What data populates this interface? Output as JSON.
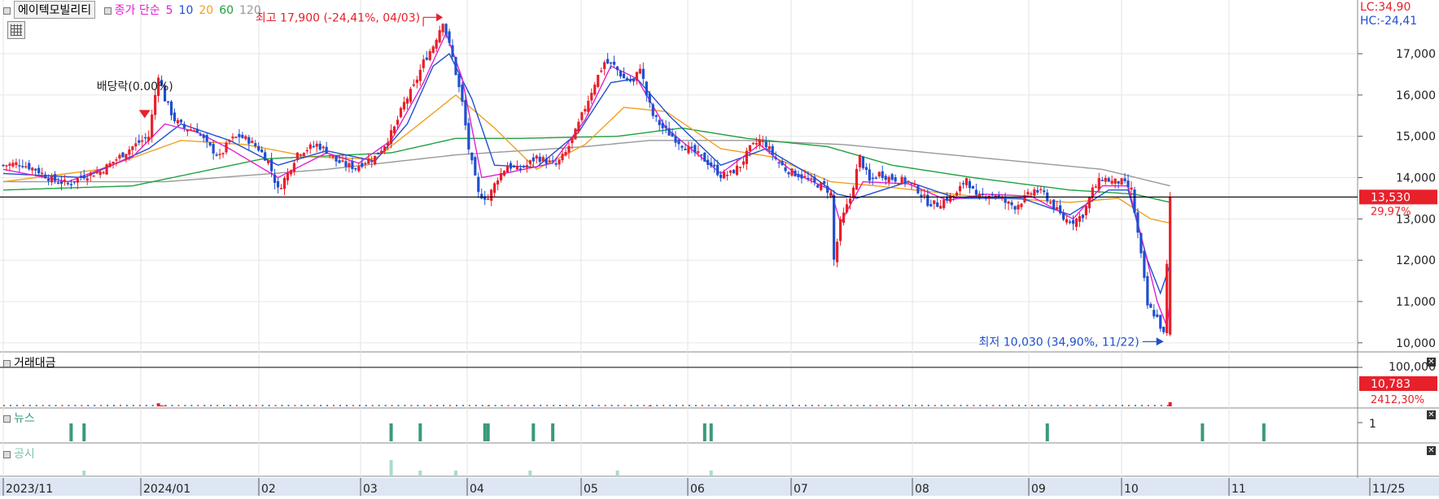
{
  "stock_name": "에이텍모빌리티",
  "ma_legend": {
    "prefix": "종가 단순",
    "periods": [
      "5",
      "10",
      "20",
      "60",
      "120"
    ],
    "colors": [
      "#e020d0",
      "#1f4fd0",
      "#f0a020",
      "#20a040",
      "#999999"
    ]
  },
  "lc_hc": {
    "lc": "LC:34,90",
    "hc": "HC:-24,41"
  },
  "pane_titles": {
    "volume": "거래대금",
    "news": "뉴스",
    "disclosure": "공시"
  },
  "date_axis": [
    "2023/11",
    "2024/01",
    "02",
    "03",
    "04",
    "05",
    "06",
    "07",
    "08",
    "09",
    "10",
    "11",
    "11/25"
  ],
  "price_axis_labels": [
    "17,000",
    "16,000",
    "15,000",
    "14,000",
    "13,000",
    "12,000",
    "11,000",
    "10,000"
  ],
  "volume_axis_label": "100,000",
  "news_axis_label": "1",
  "current_price": {
    "value": "13,530",
    "pct": "29,97%"
  },
  "current_volume": {
    "value": "10,783",
    "pct": "2412,30%"
  },
  "annotations": {
    "high": "최고 17,900 (-24,41%, 04/03)",
    "low": "최저 10,030 (34,90%, 11/22)",
    "dividend": "배당락(0.00%)"
  },
  "colors": {
    "up": "#e8202a",
    "down": "#1f4fd0",
    "news": "#3a9a78",
    "disclosure": "#a8dcc8",
    "ma120": "#999999",
    "ma60": "#20a040",
    "ma20": "#f0a020",
    "ma10": "#1f4fd0",
    "ma5": "#e020d0"
  },
  "chart_data": {
    "type": "candlestick",
    "ylim": [
      9800,
      18300
    ],
    "dates": [
      "2023/11",
      "2024/01",
      "02",
      "03",
      "04",
      "05",
      "06",
      "07",
      "08",
      "09",
      "10",
      "11",
      "11/25"
    ],
    "close_path": [
      [
        0,
        14300
      ],
      [
        5,
        14350
      ],
      [
        10,
        14200
      ],
      [
        15,
        13950
      ],
      [
        20,
        13850
      ],
      [
        25,
        14050
      ],
      [
        30,
        14150
      ],
      [
        35,
        14450
      ],
      [
        40,
        14750
      ],
      [
        45,
        15000
      ],
      [
        48,
        16500
      ],
      [
        50,
        15900
      ],
      [
        53,
        15400
      ],
      [
        56,
        15200
      ],
      [
        60,
        15150
      ],
      [
        63,
        14800
      ],
      [
        67,
        14500
      ],
      [
        70,
        14900
      ],
      [
        73,
        15000
      ],
      [
        76,
        14900
      ],
      [
        79,
        14700
      ],
      [
        82,
        14400
      ],
      [
        85,
        13700
      ],
      [
        88,
        14100
      ],
      [
        91,
        14600
      ],
      [
        94,
        14700
      ],
      [
        97,
        14800
      ],
      [
        100,
        14650
      ],
      [
        103,
        14400
      ],
      [
        106,
        14300
      ],
      [
        109,
        14250
      ],
      [
        112,
        14400
      ],
      [
        115,
        14500
      ],
      [
        118,
        14800
      ],
      [
        121,
        15200
      ],
      [
        124,
        15800
      ],
      [
        127,
        16200
      ],
      [
        130,
        16800
      ],
      [
        133,
        17200
      ],
      [
        136,
        17800
      ],
      [
        139,
        16900
      ],
      [
        142,
        15800
      ],
      [
        144,
        14700
      ],
      [
        147,
        13600
      ],
      [
        150,
        13500
      ],
      [
        153,
        14000
      ],
      [
        156,
        14300
      ],
      [
        159,
        14200
      ],
      [
        162,
        14300
      ],
      [
        165,
        14500
      ],
      [
        168,
        14400
      ],
      [
        171,
        14300
      ],
      [
        174,
        14600
      ],
      [
        177,
        15100
      ],
      [
        180,
        15700
      ],
      [
        183,
        16300
      ],
      [
        186,
        16800
      ],
      [
        189,
        16700
      ],
      [
        192,
        16400
      ],
      [
        195,
        16300
      ],
      [
        197,
        16700
      ],
      [
        199,
        16000
      ],
      [
        201,
        15500
      ],
      [
        204,
        15200
      ],
      [
        207,
        15000
      ],
      [
        210,
        14800
      ],
      [
        213,
        14650
      ],
      [
        216,
        14500
      ],
      [
        219,
        14300
      ],
      [
        222,
        14050
      ],
      [
        225,
        14100
      ],
      [
        228,
        14300
      ],
      [
        231,
        14700
      ],
      [
        234,
        14900
      ],
      [
        236,
        14800
      ],
      [
        239,
        14450
      ],
      [
        242,
        14200
      ],
      [
        245,
        14100
      ],
      [
        248,
        14000
      ],
      [
        251,
        13850
      ],
      [
        254,
        13800
      ],
      [
        256,
        13600
      ],
      [
        257,
        12000
      ],
      [
        259,
        12900
      ],
      [
        262,
        13500
      ],
      [
        265,
        14500
      ],
      [
        268,
        13900
      ],
      [
        271,
        14100
      ],
      [
        274,
        14000
      ],
      [
        277,
        13950
      ],
      [
        280,
        13900
      ],
      [
        283,
        13700
      ],
      [
        286,
        13400
      ],
      [
        289,
        13350
      ],
      [
        292,
        13500
      ],
      [
        295,
        13600
      ],
      [
        298,
        14000
      ],
      [
        301,
        13500
      ],
      [
        304,
        13600
      ],
      [
        307,
        13600
      ],
      [
        310,
        13400
      ],
      [
        313,
        13300
      ],
      [
        316,
        13500
      ],
      [
        319,
        13700
      ],
      [
        322,
        13600
      ],
      [
        325,
        13300
      ],
      [
        328,
        13000
      ],
      [
        331,
        12950
      ],
      [
        334,
        13100
      ],
      [
        337,
        13700
      ],
      [
        340,
        14000
      ],
      [
        343,
        13900
      ],
      [
        346,
        13900
      ],
      [
        349,
        13700
      ],
      [
        352,
        12100
      ],
      [
        354,
        10900
      ],
      [
        357,
        10600
      ],
      [
        359,
        10200
      ],
      [
        361,
        13530
      ]
    ],
    "ma5_path": [
      [
        0,
        14200
      ],
      [
        20,
        13900
      ],
      [
        40,
        14500
      ],
      [
        50,
        15300
      ],
      [
        60,
        15100
      ],
      [
        70,
        14700
      ],
      [
        85,
        14000
      ],
      [
        100,
        14600
      ],
      [
        110,
        14350
      ],
      [
        120,
        14900
      ],
      [
        130,
        16300
      ],
      [
        137,
        17500
      ],
      [
        142,
        16400
      ],
      [
        148,
        14000
      ],
      [
        155,
        14100
      ],
      [
        170,
        14350
      ],
      [
        180,
        15400
      ],
      [
        188,
        16700
      ],
      [
        196,
        16400
      ],
      [
        205,
        15200
      ],
      [
        222,
        14100
      ],
      [
        234,
        14800
      ],
      [
        245,
        14100
      ],
      [
        256,
        13700
      ],
      [
        259,
        12900
      ],
      [
        266,
        13900
      ],
      [
        280,
        13850
      ],
      [
        292,
        13450
      ],
      [
        304,
        13600
      ],
      [
        318,
        13550
      ],
      [
        331,
        13000
      ],
      [
        340,
        13800
      ],
      [
        348,
        13800
      ],
      [
        352,
        12600
      ],
      [
        357,
        11000
      ],
      [
        360,
        10400
      ],
      [
        361,
        11000
      ]
    ],
    "ma10_path": [
      [
        0,
        14100
      ],
      [
        25,
        14000
      ],
      [
        45,
        14700
      ],
      [
        55,
        15300
      ],
      [
        70,
        14900
      ],
      [
        85,
        14300
      ],
      [
        100,
        14650
      ],
      [
        115,
        14400
      ],
      [
        125,
        15300
      ],
      [
        133,
        16700
      ],
      [
        138,
        17000
      ],
      [
        145,
        15900
      ],
      [
        152,
        14300
      ],
      [
        165,
        14250
      ],
      [
        178,
        15100
      ],
      [
        188,
        16300
      ],
      [
        196,
        16400
      ],
      [
        206,
        15500
      ],
      [
        222,
        14300
      ],
      [
        236,
        14700
      ],
      [
        250,
        14050
      ],
      [
        258,
        13600
      ],
      [
        264,
        13500
      ],
      [
        280,
        13900
      ],
      [
        295,
        13500
      ],
      [
        315,
        13500
      ],
      [
        330,
        13100
      ],
      [
        342,
        13700
      ],
      [
        348,
        13700
      ],
      [
        354,
        12000
      ],
      [
        358,
        11200
      ],
      [
        361,
        11900
      ]
    ],
    "ma20_path": [
      [
        0,
        13900
      ],
      [
        30,
        14200
      ],
      [
        55,
        14900
      ],
      [
        75,
        14800
      ],
      [
        95,
        14500
      ],
      [
        115,
        14450
      ],
      [
        132,
        15500
      ],
      [
        140,
        16000
      ],
      [
        152,
        15200
      ],
      [
        165,
        14200
      ],
      [
        180,
        14800
      ],
      [
        192,
        15700
      ],
      [
        205,
        15600
      ],
      [
        222,
        14700
      ],
      [
        238,
        14500
      ],
      [
        256,
        13900
      ],
      [
        270,
        13800
      ],
      [
        300,
        13550
      ],
      [
        330,
        13400
      ],
      [
        345,
        13500
      ],
      [
        355,
        13000
      ],
      [
        361,
        12900
      ]
    ],
    "ma60_path": [
      [
        0,
        13700
      ],
      [
        40,
        13800
      ],
      [
        80,
        14450
      ],
      [
        120,
        14600
      ],
      [
        140,
        14950
      ],
      [
        160,
        14950
      ],
      [
        190,
        15000
      ],
      [
        210,
        15200
      ],
      [
        230,
        14950
      ],
      [
        255,
        14750
      ],
      [
        275,
        14300
      ],
      [
        300,
        14000
      ],
      [
        330,
        13700
      ],
      [
        350,
        13600
      ],
      [
        361,
        13400
      ]
    ],
    "ma120_path": [
      [
        0,
        13900
      ],
      [
        50,
        13900
      ],
      [
        100,
        14200
      ],
      [
        140,
        14550
      ],
      [
        180,
        14750
      ],
      [
        200,
        14900
      ],
      [
        230,
        14900
      ],
      [
        260,
        14800
      ],
      [
        300,
        14500
      ],
      [
        340,
        14200
      ],
      [
        361,
        13800
      ]
    ],
    "volume": {
      "ylim": [
        0,
        100000
      ],
      "last": 10783,
      "spikes": [
        [
          48,
          8000
        ],
        [
          49,
          2500
        ],
        [
          50,
          1500
        ],
        [
          150,
          1000
        ],
        [
          200,
          1500
        ],
        [
          361,
          10783
        ]
      ]
    },
    "news_events": [
      21,
      25,
      120,
      129,
      149,
      150,
      164,
      170,
      217,
      219,
      323,
      371,
      390
    ],
    "disclosure_events": [
      25,
      120,
      129,
      140,
      163,
      190,
      219
    ],
    "high_marker": {
      "index": 136,
      "price": 17900,
      "date": "04/03"
    },
    "low_marker": {
      "index": 359,
      "price": 10030,
      "date": "11/22"
    },
    "dividend_marker": {
      "index": 44
    }
  }
}
